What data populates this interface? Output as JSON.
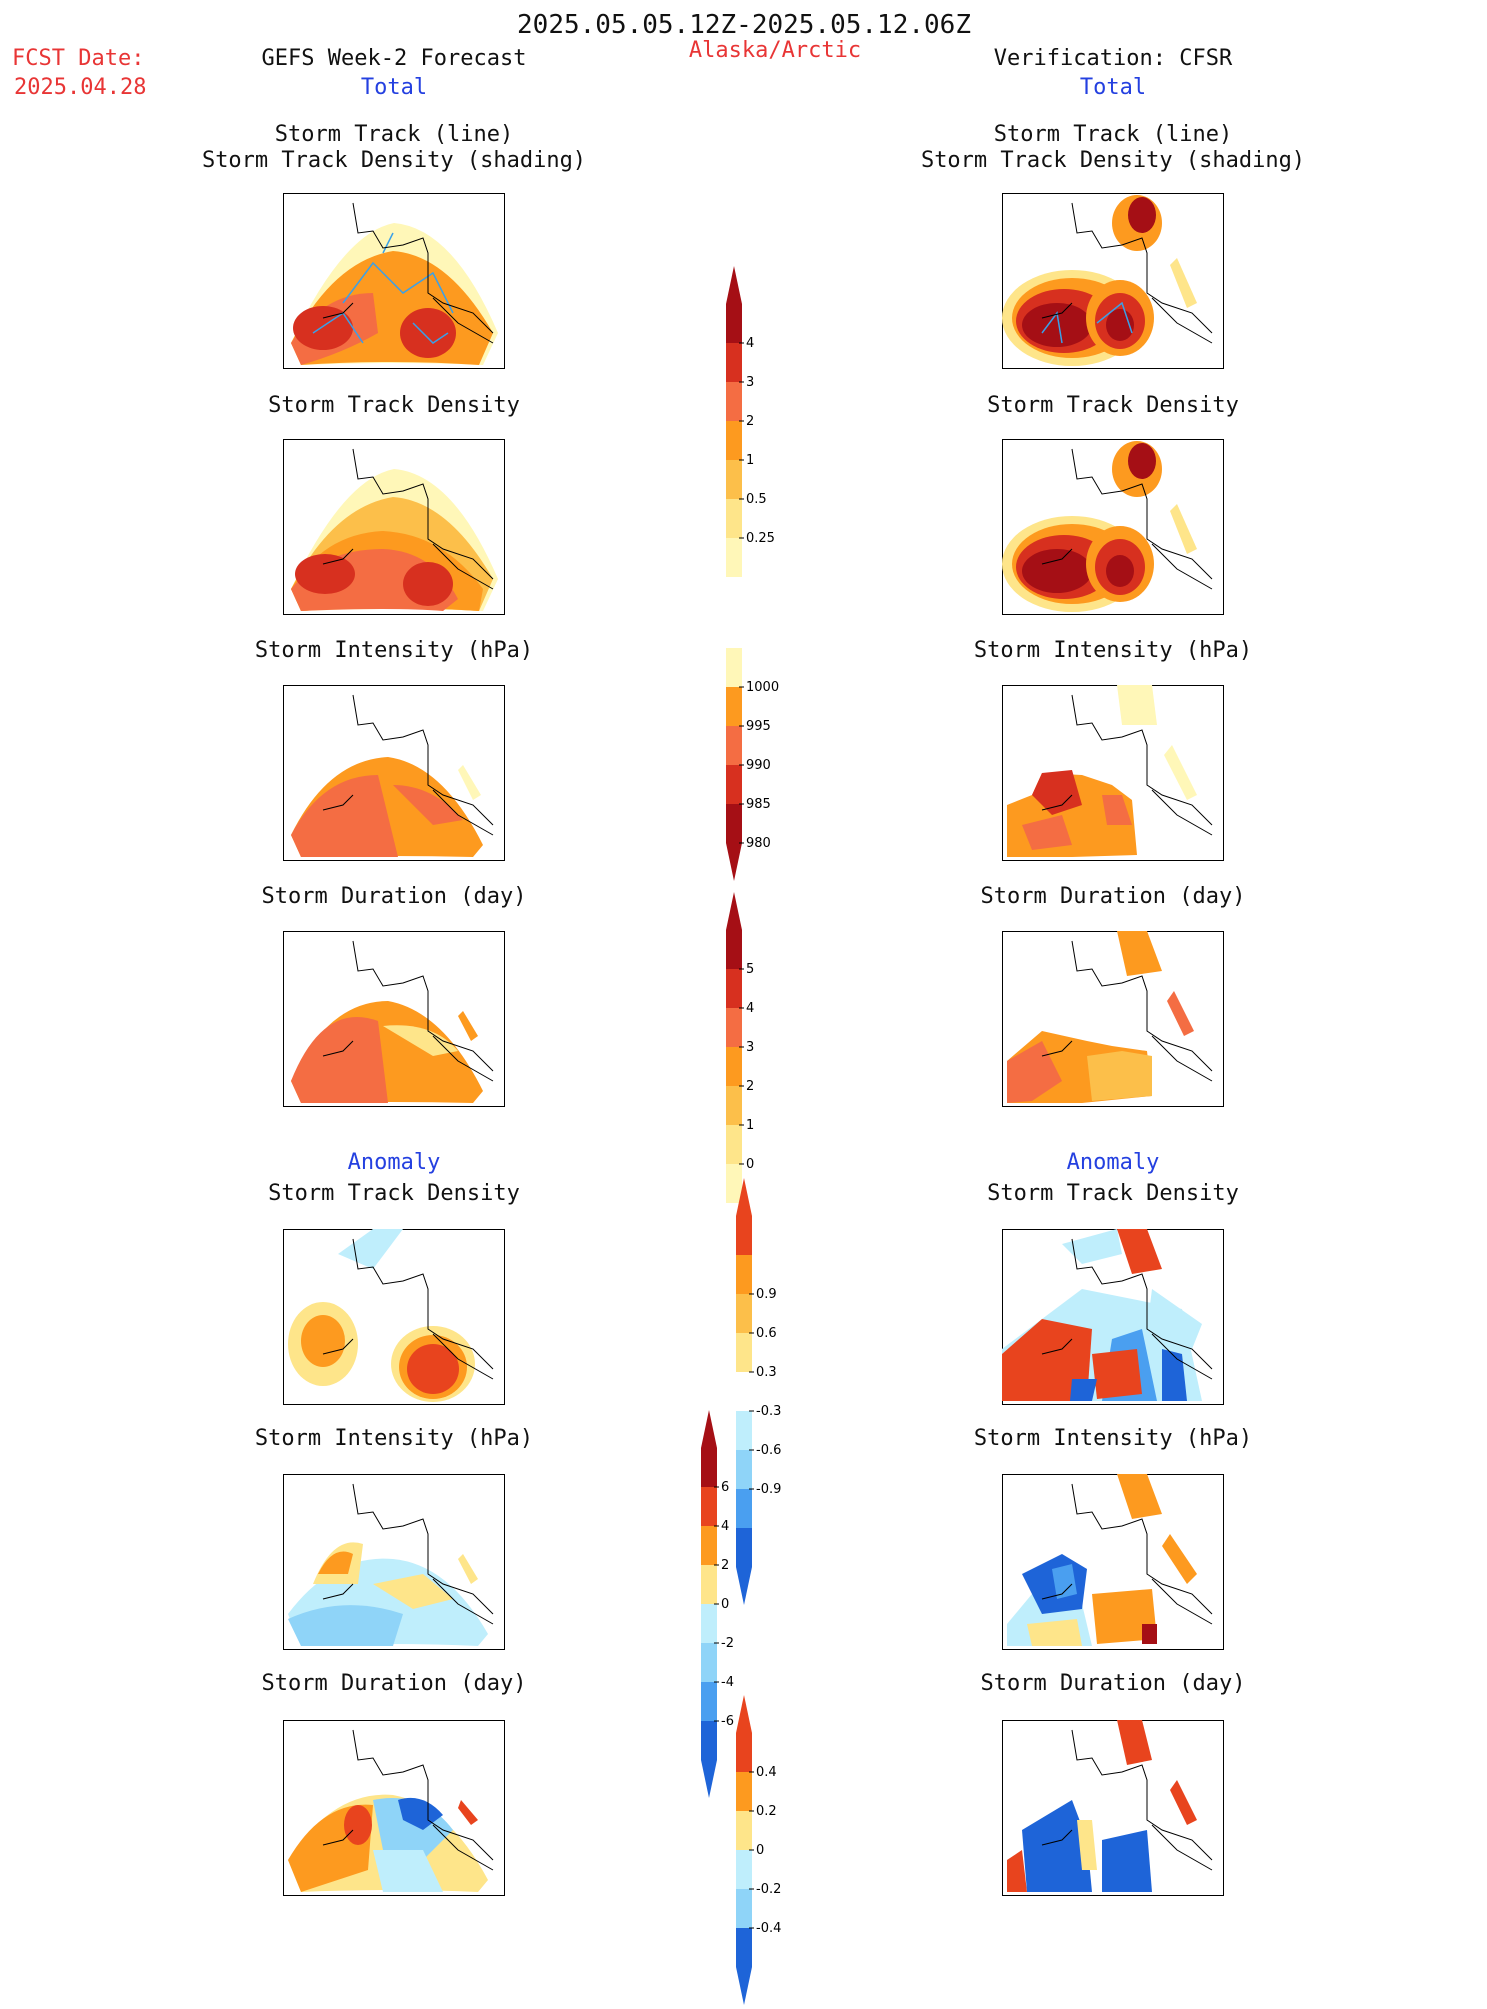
{
  "header": {
    "date_range": "2025.05.05.12Z-2025.05.12.06Z",
    "fcst_label": "FCST Date:",
    "fcst_date": "2025.04.28",
    "left_title": "GEFS Week-2 Forecast",
    "center_region": "Alaska/Arctic",
    "right_title": "Verification: CFSR",
    "total_left": "Total",
    "total_right": "Total"
  },
  "sections": {
    "anomaly_left": "Anomaly",
    "anomaly_right": "Anomaly"
  },
  "panels": {
    "row1_line1": "Storm Track (line)",
    "row1_line2": "Storm Track Density (shading)",
    "density": "Storm Track Density",
    "intensity": "Storm Intensity (hPa)",
    "duration": "Storm Duration (day)"
  },
  "colorbars": {
    "density_total": {
      "labels": [
        "4",
        "3",
        "2",
        "1",
        "0.5",
        "0.25"
      ],
      "colors": [
        "#a50f15",
        "#d7301f",
        "#f46d43",
        "#fd9a1f",
        "#fcbf4a",
        "#fee58a",
        "#fff7b8"
      ]
    },
    "intensity_total": {
      "labels": [
        "1000",
        "995",
        "990",
        "985",
        "980"
      ],
      "colors": [
        "#fff7b8",
        "#fd9a1f",
        "#f46d43",
        "#d7301f",
        "#a50f15"
      ]
    },
    "duration_total": {
      "labels": [
        "5",
        "4",
        "3",
        "2",
        "1",
        "0"
      ],
      "colors": [
        "#a50f15",
        "#d7301f",
        "#f46d43",
        "#fd9a1f",
        "#fcbf4a",
        "#fee58a",
        "#fff7b8"
      ]
    },
    "density_anom": {
      "labels": [
        "0.9",
        "0.6",
        "0.3",
        "-0.3",
        "-0.6",
        "-0.9"
      ],
      "colors": [
        "#e8441e",
        "#fd9a1f",
        "#fcbf4a",
        "#fee58a",
        "#ffffff",
        "#bfeefc",
        "#8fd4f8",
        "#4a9ff0",
        "#1e64d8"
      ]
    },
    "intensity_anom": {
      "labels": [
        "6",
        "4",
        "2",
        "0",
        "-2",
        "-4",
        "-6"
      ],
      "colors": [
        "#a50f15",
        "#e8441e",
        "#fd9a1f",
        "#fee58a",
        "#bfeefc",
        "#8fd4f8",
        "#4a9ff0",
        "#1e64d8"
      ]
    },
    "duration_anom": {
      "labels": [
        "0.4",
        "0.2",
        "0",
        "-0.2",
        "-0.4"
      ],
      "colors": [
        "#e8441e",
        "#fd9a1f",
        "#fee58a",
        "#bfeefc",
        "#8fd4f8",
        "#1e64d8"
      ]
    }
  },
  "colors": {
    "title_red": "#e83535",
    "title_blue": "#2440e0",
    "track_line": "#3aa0e8"
  }
}
